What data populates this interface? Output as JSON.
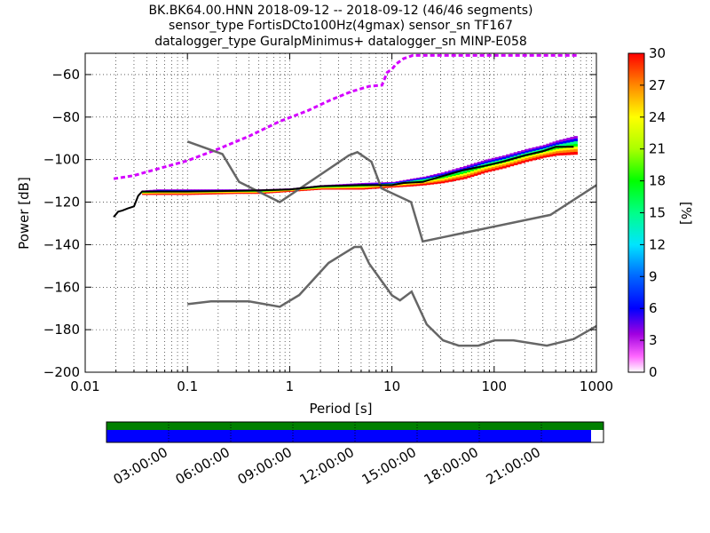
{
  "title_lines": [
    "BK.BK64.00.HNN   2018-09-12 -- 2018-09-12  (46/46 segments)",
    "sensor_type FortisDCto100Hz(4gmax) sensor_sn TF167",
    "datalogger_type GuralpMinimus+ datalogger_sn MINP-E058"
  ],
  "colors": {
    "noise_model": "#666666",
    "mode_line": "#000000",
    "coverage_top": "#008000",
    "coverage_bottom": "#0000ff"
  },
  "chart_data": {
    "type": "heatmap",
    "title": "BK.BK64.00.HNN   2018-09-12 -- 2018-09-12  (46/46 segments)",
    "subtitle": [
      "sensor_type FortisDCto100Hz(4gmax) sensor_sn TF167",
      "datalogger_type GuralpMinimus+ datalogger_sn MINP-E058"
    ],
    "xlabel": "Period [s]",
    "ylabel": "Power [dB]",
    "xscale": "log",
    "xlim": [
      0.01,
      1000
    ],
    "ylim": [
      -200,
      -50
    ],
    "grid": true,
    "x_ticks": [
      0.01,
      0.1,
      1,
      10,
      100,
      1000
    ],
    "x_tick_labels": [
      "0.01",
      "0.1",
      "1",
      "10",
      "100",
      "1000"
    ],
    "y_ticks": [
      -200,
      -180,
      -160,
      -140,
      -120,
      -100,
      -80,
      -60
    ],
    "y_tick_labels": [
      "−200",
      "−180",
      "−160",
      "−140",
      "−120",
      "−100",
      "−80",
      "−60"
    ],
    "colorbar": {
      "label": "[%]",
      "min": 0,
      "max": 30,
      "ticks": [
        0,
        3,
        6,
        9,
        12,
        15,
        18,
        21,
        24,
        27,
        30
      ]
    },
    "high_noise_model": [
      [
        0.1,
        -91.5
      ],
      [
        0.22,
        -97.4
      ],
      [
        0.32,
        -110.5
      ],
      [
        0.8,
        -120
      ],
      [
        3.8,
        -98
      ],
      [
        4.6,
        -96.5
      ],
      [
        6.3,
        -101
      ],
      [
        7.9,
        -113.5
      ],
      [
        15.4,
        -120
      ],
      [
        20,
        -138.5
      ],
      [
        354.8,
        -126
      ],
      [
        1000,
        -112
      ]
    ],
    "low_noise_model": [
      [
        0.1,
        -168
      ],
      [
        0.17,
        -166.7
      ],
      [
        0.4,
        -166.7
      ],
      [
        0.8,
        -169.2
      ],
      [
        1.24,
        -163.7
      ],
      [
        2.4,
        -148.6
      ],
      [
        4.3,
        -141.1
      ],
      [
        5,
        -141.1
      ],
      [
        6,
        -149
      ],
      [
        10,
        -163.8
      ],
      [
        12,
        -166.2
      ],
      [
        15.6,
        -162.1
      ],
      [
        21.9,
        -177.5
      ],
      [
        31.6,
        -185
      ],
      [
        45,
        -187.5
      ],
      [
        70,
        -187.5
      ],
      [
        101,
        -185
      ],
      [
        154,
        -185
      ],
      [
        328,
        -187.5
      ],
      [
        600,
        -184.4
      ],
      [
        1000,
        -178.3
      ]
    ],
    "mode_psd": [
      [
        0.019,
        -127
      ],
      [
        0.021,
        -124.5
      ],
      [
        0.023,
        -124
      ],
      [
        0.026,
        -123
      ],
      [
        0.03,
        -122
      ],
      [
        0.033,
        -117
      ],
      [
        0.036,
        -115
      ],
      [
        0.05,
        -115
      ],
      [
        0.1,
        -115
      ],
      [
        0.5,
        -114.5
      ],
      [
        1,
        -114
      ],
      [
        2,
        -112.5
      ],
      [
        5,
        -112
      ],
      [
        10,
        -112
      ],
      [
        13,
        -111
      ],
      [
        20,
        -110.5
      ],
      [
        30,
        -108
      ],
      [
        50,
        -105
      ],
      [
        80,
        -103
      ],
      [
        120,
        -101
      ],
      [
        200,
        -98
      ],
      [
        300,
        -96
      ],
      [
        400,
        -94
      ],
      [
        600,
        -94
      ]
    ],
    "upper_trace": [
      [
        0.019,
        -109
      ],
      [
        0.03,
        -107.5
      ],
      [
        0.05,
        -104.5
      ],
      [
        0.1,
        -100.5
      ],
      [
        0.2,
        -95
      ],
      [
        0.4,
        -89
      ],
      [
        0.8,
        -82
      ],
      [
        1.5,
        -77
      ],
      [
        2.5,
        -72
      ],
      [
        4,
        -68
      ],
      [
        6,
        -65.5
      ],
      [
        8,
        -65
      ],
      [
        9,
        -59
      ],
      [
        10,
        -57.5
      ],
      [
        11,
        -55
      ],
      [
        13,
        -52.5
      ],
      [
        16,
        -51
      ],
      [
        25,
        -51
      ],
      [
        100,
        -51
      ],
      [
        300,
        -51
      ],
      [
        650,
        -51
      ]
    ],
    "psd_spread": [
      [
        0.036,
        -116.5,
        -114.5
      ],
      [
        0.05,
        -116.5,
        -114
      ],
      [
        0.1,
        -116.5,
        -114
      ],
      [
        0.3,
        -116,
        -114
      ],
      [
        0.5,
        -116,
        -114
      ],
      [
        1,
        -115,
        -113.5
      ],
      [
        2,
        -114,
        -112
      ],
      [
        5,
        -114,
        -111
      ],
      [
        10,
        -113,
        -110.5
      ],
      [
        15,
        -112.5,
        -109
      ],
      [
        20,
        -112,
        -108
      ],
      [
        30,
        -111,
        -106
      ],
      [
        50,
        -109,
        -103
      ],
      [
        80,
        -106,
        -100
      ],
      [
        120,
        -104,
        -98
      ],
      [
        200,
        -101,
        -95
      ],
      [
        300,
        -99,
        -93
      ],
      [
        400,
        -98,
        -91
      ],
      [
        650,
        -97.5,
        -88.5
      ]
    ],
    "coverage": {
      "tick_labels": [
        "03:00:00",
        "06:00:00",
        "09:00:00",
        "12:00:00",
        "15:00:00",
        "18:00:00",
        "21:00:00"
      ],
      "data_fraction": 0.975
    }
  }
}
